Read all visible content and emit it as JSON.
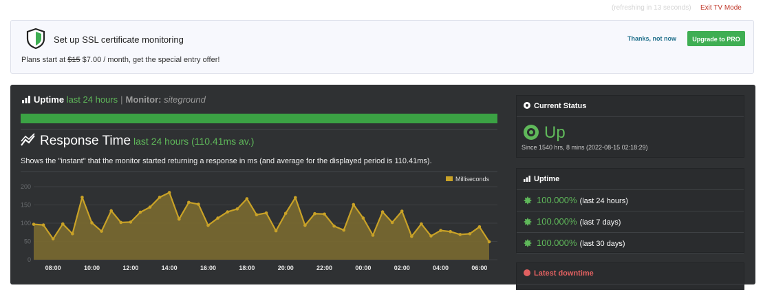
{
  "topbar": {
    "refresh_text": "(refreshing in 13 seconds)",
    "exit_tv_label": "Exit TV Mode"
  },
  "ssl_banner": {
    "title": "Set up SSL certificate monitoring",
    "plans_prefix": "Plans start at ",
    "old_price": "$15",
    "plans_suffix": " $7.00 / month, get the special entry offer!",
    "thanks_label": "Thanks, not now",
    "upgrade_label": "Upgrade to PRO",
    "icon": "shield-icon"
  },
  "uptime_section": {
    "title": "Uptime",
    "period": "last 24 hours",
    "monitor_label": "Monitor:",
    "monitor_name": "siteground",
    "uptime_fraction": 1.0,
    "bar_color": "#3ba244"
  },
  "response_section": {
    "title": "Response Time",
    "subtitle": "last 24 hours (110.41ms av.)",
    "description": "Shows the \"instant\" that the monitor started returning a response in ms (and average for the displayed period is 110.41ms)."
  },
  "chart_data": {
    "type": "area",
    "legend": "Milliseconds",
    "legend_placement": "top-right",
    "ylim": [
      0,
      200
    ],
    "y_ticks": [
      "0",
      "50",
      "100",
      "150",
      "200"
    ],
    "x_ticks": [
      "08:00",
      "10:00",
      "12:00",
      "14:00",
      "16:00",
      "18:00",
      "20:00",
      "22:00",
      "00:00",
      "02:00",
      "04:00",
      "06:00"
    ],
    "x_tick_hours": [
      1,
      3,
      5,
      7,
      9,
      11,
      13,
      15,
      17,
      19,
      21,
      23
    ],
    "x_hours": [
      0,
      0.5,
      1,
      1.5,
      2,
      2.5,
      3,
      3.5,
      4,
      4.5,
      5,
      5.5,
      6,
      6.5,
      7,
      7.5,
      8,
      8.5,
      9,
      9.5,
      10,
      10.5,
      11,
      11.5,
      12,
      12.5,
      13,
      13.5,
      14,
      14.5,
      15,
      15.5,
      16,
      16.5,
      17,
      17.5,
      18,
      18.5,
      19,
      19.5,
      20,
      20.5,
      21,
      21.5,
      22,
      22.5,
      23,
      23.5
    ],
    "values": [
      97,
      95,
      57,
      98,
      71,
      171,
      101,
      78,
      134,
      102,
      103,
      130,
      144,
      171,
      184,
      111,
      157,
      152,
      94,
      114,
      131,
      139,
      167,
      123,
      128,
      79,
      127,
      170,
      94,
      126,
      125,
      92,
      81,
      151,
      114,
      67,
      131,
      102,
      133,
      64,
      98,
      65,
      80,
      77,
      69,
      71,
      90,
      49
    ],
    "series_color": "#c9a227",
    "fill_color": "#7a6a30"
  },
  "current_status": {
    "header": "Current Status",
    "status": "Up",
    "since": "Since 1540 hrs, 8 mins (2022-08-15 02:18:29)"
  },
  "uptime_panel": {
    "header": "Uptime",
    "rows": [
      {
        "pct": "100.000%",
        "period": "(last 24 hours)"
      },
      {
        "pct": "100.000%",
        "period": "(last 7 days)"
      },
      {
        "pct": "100.000%",
        "period": "(last 30 days)"
      }
    ]
  },
  "latest_downtime": {
    "header": "Latest downtime"
  },
  "colors": {
    "accent_green": "#5fb85a",
    "button_green": "#3fae53",
    "exit_red": "#c0392b",
    "dash_bg": "#2f3133"
  }
}
